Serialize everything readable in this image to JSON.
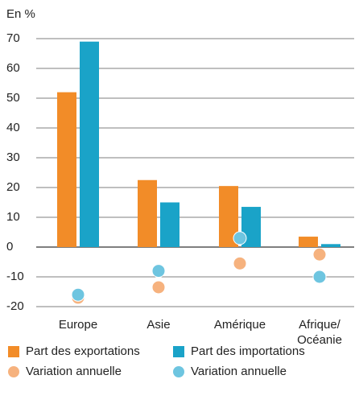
{
  "chart_data": {
    "type": "bar",
    "ylabel": "En %",
    "categories": [
      "Europe",
      "Asie",
      "Amérique",
      "Afrique/\nOcéanie"
    ],
    "series": [
      {
        "name": "Part des exportations",
        "color": "#f28c28",
        "type": "bar",
        "values": [
          52,
          22.5,
          20.5,
          3.5
        ]
      },
      {
        "name": "Part des importations",
        "color": "#1aa3c8",
        "type": "bar",
        "values": [
          69,
          15,
          13.5,
          1
        ]
      },
      {
        "name": "Variation annuelle",
        "color": "#f6b27e",
        "type": "scatter",
        "values": [
          -17,
          -13.5,
          -5.5,
          -2.5
        ]
      },
      {
        "name": "Variation annuelle",
        "color": "#6ec5e0",
        "type": "scatter",
        "values": [
          -16,
          -8,
          3,
          -10
        ]
      }
    ],
    "ylim": [
      -20,
      70
    ],
    "yticks": [
      -20,
      -10,
      0,
      10,
      20,
      30,
      40,
      50,
      60,
      70
    ],
    "grid": true
  }
}
